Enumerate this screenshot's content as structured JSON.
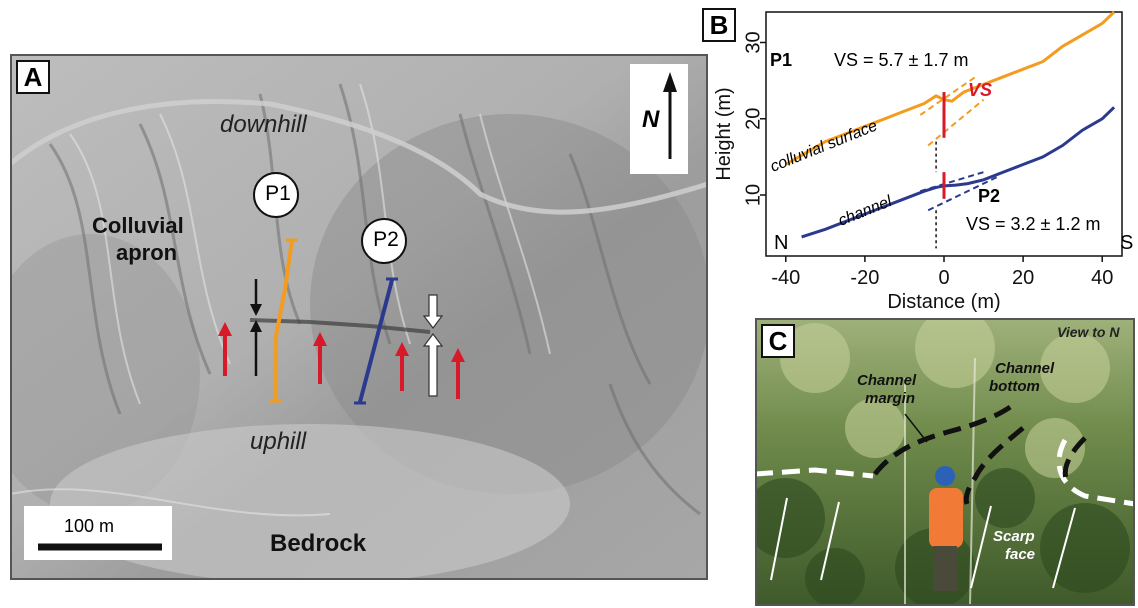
{
  "panel_a": {
    "label": "A",
    "north_label": "N",
    "labels": {
      "downhill": "downhill",
      "uphill": "uphill",
      "colluvial": "Colluvial",
      "apron": "apron",
      "bedrock": "Bedrock",
      "p1": "P1",
      "p2": "P2"
    },
    "scale_bar": "100 m"
  },
  "panel_b": {
    "label": "B",
    "p1_label": "P1",
    "p2_label": "P2",
    "vs_label": "VS",
    "vs_p1": "VS = 5.7 ± 1.7 m",
    "vs_p2": "VS = 3.2 ± 1.2 m",
    "colluvial_surface": "colluvial surface",
    "channel": "channel",
    "north": "N",
    "south": "S"
  },
  "chart_data": {
    "type": "line",
    "xlabel": "Distance (m)",
    "ylabel": "Height (m)",
    "xlim": [
      -45,
      45
    ],
    "ylim": [
      2,
      34
    ],
    "xticks": [
      -40,
      -20,
      0,
      20,
      40
    ],
    "yticks": [
      10,
      20,
      30
    ],
    "series": [
      {
        "name": "colluvial surface",
        "color": "#f39c1f",
        "x": [
          -40,
          -35,
          -30,
          -25,
          -20,
          -15,
          -10,
          -5,
          -2,
          0,
          2,
          5,
          10,
          15,
          20,
          25,
          30,
          35,
          40,
          43
        ],
        "y": [
          14,
          15.5,
          17,
          18,
          19,
          20,
          21,
          22,
          23,
          22.5,
          22.3,
          23.5,
          24.5,
          25.5,
          26.5,
          27.5,
          29.5,
          31,
          32.5,
          34
        ]
      },
      {
        "name": "channel",
        "color": "#2b3a8f",
        "x": [
          -36,
          -30,
          -25,
          -20,
          -15,
          -10,
          -5,
          -2,
          0,
          3,
          6,
          10,
          15,
          20,
          25,
          30,
          35,
          40,
          43
        ],
        "y": [
          4.5,
          5.5,
          6.5,
          7.5,
          8.5,
          9.5,
          10.5,
          11,
          11.2,
          11.3,
          11.5,
          12,
          13,
          14,
          15,
          16.5,
          18.5,
          20,
          21.5
        ]
      }
    ]
  },
  "panel_c": {
    "label": "C",
    "view": "View to N",
    "channel_margin_1": "Channel",
    "channel_margin_2": "margin",
    "channel_bottom_1": "Channel",
    "channel_bottom_2": "bottom",
    "scarp_1": "Scarp",
    "scarp_2": "face"
  }
}
